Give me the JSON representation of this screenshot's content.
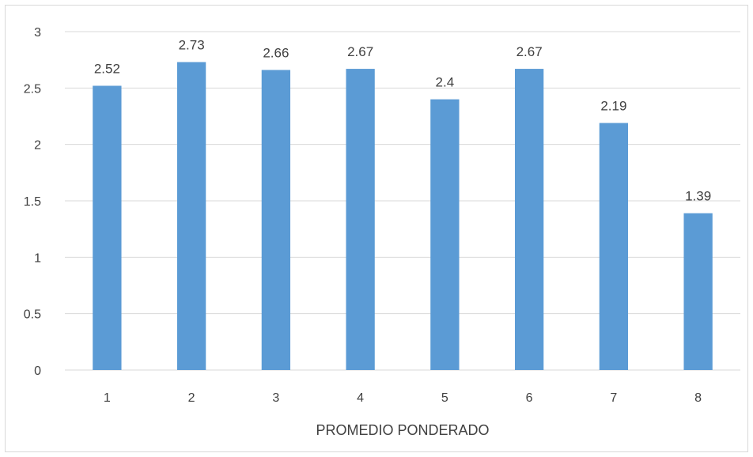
{
  "chart_data": {
    "type": "bar",
    "title": "",
    "xlabel": "PROMEDIO PONDERADO",
    "ylabel": "",
    "categories": [
      "1",
      "2",
      "3",
      "4",
      "5",
      "6",
      "7",
      "8"
    ],
    "values": [
      2.52,
      2.73,
      2.66,
      2.67,
      2.4,
      2.67,
      2.19,
      1.39
    ],
    "data_labels": [
      "2.52",
      "2.73",
      "2.66",
      "2.67",
      "2.4",
      "2.67",
      "2.19",
      "1.39"
    ],
    "ylim": [
      0,
      3
    ],
    "yticks": [
      0,
      0.5,
      1,
      1.5,
      2,
      2.5,
      3
    ],
    "ytick_labels": [
      "0",
      "0.5",
      "1",
      "1.5",
      "2",
      "2.5",
      "3"
    ],
    "grid": true,
    "legend": "none",
    "bar_color": "#5b9bd5",
    "grid_color": "#d9d9d9",
    "text_color": "#404040"
  }
}
